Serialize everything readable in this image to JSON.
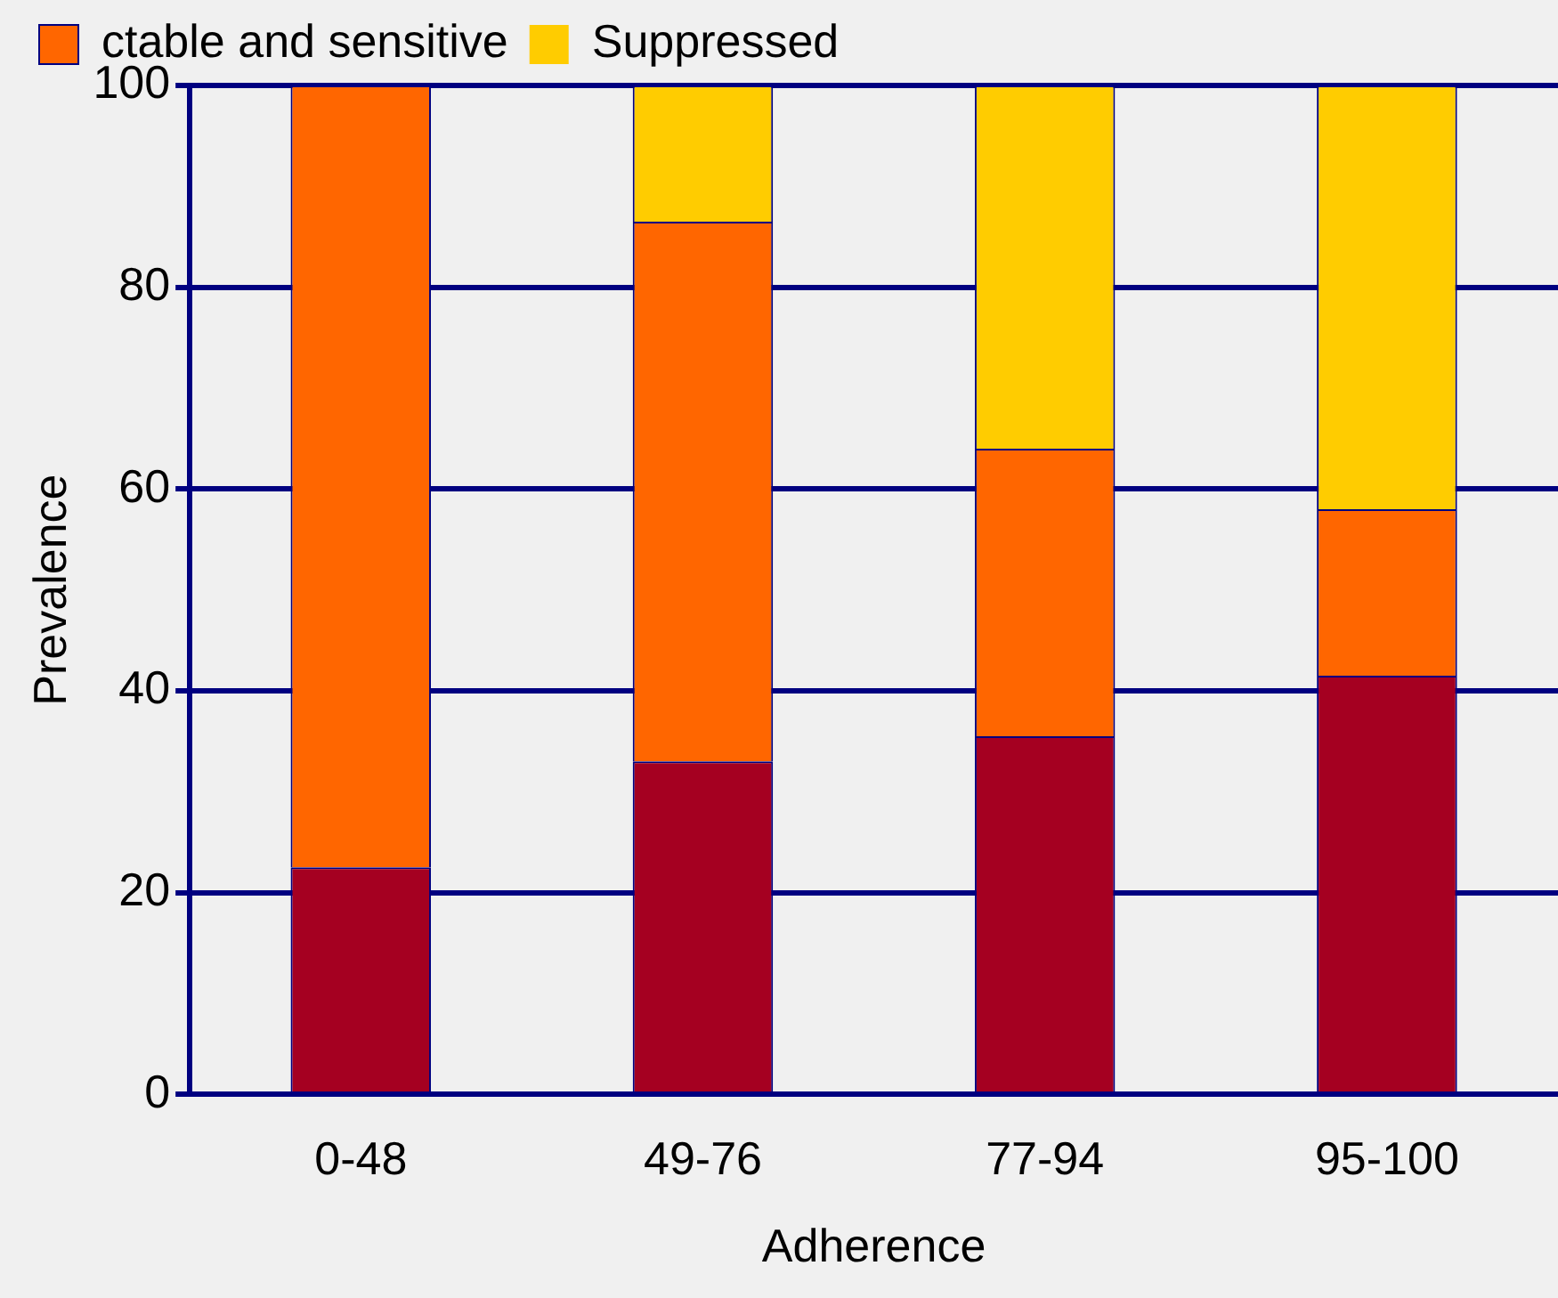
{
  "chart_data": {
    "type": "bar",
    "stacked": true,
    "xlabel": "Adherence",
    "ylabel": "Prevalence",
    "categories": [
      "0-48",
      "49-76",
      "77-94",
      "95-100"
    ],
    "series": [
      {
        "color": "#a50021",
        "values": [
          22.5,
          33,
          35.5,
          41.5
        ]
      },
      {
        "name": "ctable and sensitive",
        "color": "#ff6600",
        "values": [
          77.5,
          53.5,
          28.5,
          16.5
        ]
      },
      {
        "name": "Suppressed",
        "color": "#ffcc00",
        "values": [
          0,
          13.5,
          36,
          42
        ]
      }
    ],
    "ylim": [
      0,
      100
    ],
    "yticks": [
      0,
      20,
      40,
      60,
      80,
      100
    ],
    "grid": "y",
    "legend": "top left"
  }
}
